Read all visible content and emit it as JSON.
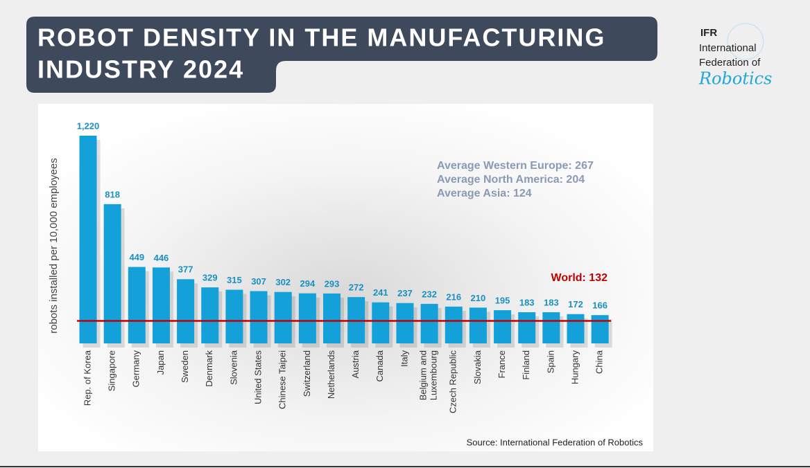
{
  "chart_data": {
    "type": "bar",
    "title": [
      "ROBOT DENSITY IN THE MANUFACTURING",
      "INDUSTRY 2024"
    ],
    "logo": {
      "acronym": "IFR",
      "lines": [
        "International",
        "Federation of"
      ],
      "script": "Robotics"
    },
    "y_label": "robots installed per 10,000 employees",
    "categories": [
      "Rep. of Korea",
      "Singapore",
      "Germany",
      "Japan",
      "Sweden",
      "Denmark",
      "Slovenia",
      "United States",
      "Chinese Taipei",
      "Switzerland",
      "Netherlands",
      "Austria",
      "Canada",
      "Italy",
      "Belgium and\nLuxembourg",
      "Czech Republic",
      "Slovakia",
      "France",
      "Finland",
      "Spain",
      "Hungary",
      "China"
    ],
    "values": [
      1220,
      818,
      449,
      446,
      377,
      329,
      315,
      307,
      302,
      294,
      293,
      272,
      241,
      237,
      232,
      216,
      210,
      195,
      183,
      183,
      172,
      166
    ],
    "value_labels": [
      "1,220",
      "818",
      "449",
      "446",
      "377",
      "329",
      "315",
      "307",
      "302",
      "294",
      "293",
      "272",
      "241",
      "237",
      "232",
      "216",
      "210",
      "195",
      "183",
      "183",
      "172",
      "166"
    ],
    "color": "#14a0d8",
    "ylim": [
      0,
      1220
    ],
    "reference_line": {
      "value": 132,
      "label": "World: 132",
      "color": "#c00000"
    },
    "annotations": [
      "Average Western Europe: 267",
      "Average North America: 204",
      "Average Asia: 124"
    ],
    "source": "Source: International Federation of Robotics"
  }
}
